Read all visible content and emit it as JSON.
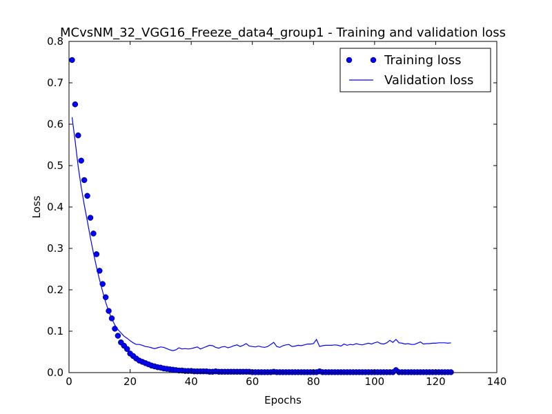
{
  "chart_data": {
    "type": "line",
    "title": "MCvsNM_32_VGG16_Freeze_data4_group1 - Training and validation loss",
    "xlabel": "Epochs",
    "ylabel": "Loss",
    "xlim": [
      0,
      140
    ],
    "ylim": [
      0.0,
      0.8
    ],
    "xticks": [
      "0",
      "20",
      "40",
      "60",
      "80",
      "100",
      "120",
      "140"
    ],
    "yticks": [
      "0.0",
      "0.1",
      "0.2",
      "0.3",
      "0.4",
      "0.5",
      "0.6",
      "0.7",
      "0.8"
    ],
    "grid": false,
    "legend_position": "top-right",
    "series": [
      {
        "name": "Training loss",
        "style": "markers",
        "color": "#0000ff",
        "x": [
          1,
          2,
          3,
          4,
          5,
          6,
          7,
          8,
          9,
          10,
          11,
          12,
          13,
          14,
          15,
          16,
          17,
          18,
          19,
          20,
          21,
          22,
          23,
          24,
          25,
          26,
          27,
          28,
          29,
          30,
          31,
          32,
          33,
          34,
          35,
          36,
          37,
          38,
          39,
          40,
          41,
          42,
          43,
          44,
          45,
          46,
          47,
          48,
          49,
          50,
          51,
          52,
          53,
          54,
          55,
          56,
          57,
          58,
          59,
          60,
          61,
          62,
          63,
          64,
          65,
          66,
          67,
          68,
          69,
          70,
          71,
          72,
          73,
          74,
          75,
          76,
          77,
          78,
          79,
          80,
          81,
          82,
          83,
          84,
          85,
          86,
          87,
          88,
          89,
          90,
          91,
          92,
          93,
          94,
          95,
          96,
          97,
          98,
          99,
          100,
          101,
          102,
          103,
          104,
          105,
          106,
          107,
          108,
          109,
          110,
          111,
          112,
          113,
          114,
          115,
          116,
          117,
          118,
          119,
          120,
          121,
          122,
          123,
          124,
          125
        ],
        "values": [
          0.755,
          0.648,
          0.573,
          0.512,
          0.465,
          0.427,
          0.374,
          0.336,
          0.286,
          0.246,
          0.214,
          0.182,
          0.149,
          0.131,
          0.106,
          0.089,
          0.073,
          0.065,
          0.057,
          0.046,
          0.04,
          0.034,
          0.029,
          0.026,
          0.023,
          0.02,
          0.017,
          0.015,
          0.013,
          0.012,
          0.01,
          0.009,
          0.008,
          0.007,
          0.006,
          0.005,
          0.005,
          0.004,
          0.004,
          0.004,
          0.003,
          0.003,
          0.003,
          0.003,
          0.003,
          0.002,
          0.002,
          0.003,
          0.002,
          0.002,
          0.002,
          0.002,
          0.002,
          0.002,
          0.002,
          0.002,
          0.002,
          0.002,
          0.002,
          0.001,
          0.001,
          0.001,
          0.001,
          0.001,
          0.001,
          0.001,
          0.002,
          0.001,
          0.001,
          0.001,
          0.001,
          0.001,
          0.001,
          0.001,
          0.001,
          0.001,
          0.001,
          0.001,
          0.001,
          0.001,
          0.001,
          0.003,
          0.001,
          0.001,
          0.001,
          0.001,
          0.001,
          0.001,
          0.001,
          0.001,
          0.001,
          0.001,
          0.001,
          0.001,
          0.001,
          0.001,
          0.001,
          0.001,
          0.001,
          0.001,
          0.001,
          0.001,
          0.001,
          0.001,
          0.001,
          0.001,
          0.006,
          0.001,
          0.001,
          0.001,
          0.001,
          0.001,
          0.001,
          0.001,
          0.001,
          0.001,
          0.001,
          0.001,
          0.001,
          0.001,
          0.001,
          0.001,
          0.001,
          0.001,
          0.001
        ]
      },
      {
        "name": "Validation loss",
        "style": "line",
        "color": "#0000ff",
        "x": [
          1,
          2,
          3,
          4,
          5,
          6,
          7,
          8,
          9,
          10,
          11,
          12,
          13,
          14,
          15,
          16,
          17,
          18,
          19,
          20,
          21,
          22,
          23,
          24,
          25,
          26,
          27,
          28,
          29,
          30,
          31,
          32,
          33,
          34,
          35,
          36,
          37,
          38,
          39,
          40,
          41,
          42,
          43,
          44,
          45,
          46,
          47,
          48,
          49,
          50,
          51,
          52,
          53,
          54,
          55,
          56,
          57,
          58,
          59,
          60,
          61,
          62,
          63,
          64,
          65,
          66,
          67,
          68,
          69,
          70,
          71,
          72,
          73,
          74,
          75,
          76,
          77,
          78,
          79,
          80,
          81,
          82,
          83,
          84,
          85,
          86,
          87,
          88,
          89,
          90,
          91,
          92,
          93,
          94,
          95,
          96,
          97,
          98,
          99,
          100,
          101,
          102,
          103,
          104,
          105,
          106,
          107,
          108,
          109,
          110,
          111,
          112,
          113,
          114,
          115,
          116,
          117,
          118,
          119,
          120,
          121,
          122,
          123,
          124,
          125
        ],
        "values": [
          0.617,
          0.56,
          0.498,
          0.448,
          0.405,
          0.366,
          0.326,
          0.289,
          0.255,
          0.224,
          0.196,
          0.17,
          0.148,
          0.13,
          0.115,
          0.104,
          0.096,
          0.088,
          0.083,
          0.077,
          0.072,
          0.068,
          0.068,
          0.066,
          0.063,
          0.062,
          0.06,
          0.058,
          0.06,
          0.062,
          0.061,
          0.058,
          0.055,
          0.053,
          0.055,
          0.06,
          0.057,
          0.058,
          0.057,
          0.058,
          0.06,
          0.062,
          0.057,
          0.06,
          0.063,
          0.066,
          0.065,
          0.061,
          0.059,
          0.062,
          0.063,
          0.06,
          0.062,
          0.065,
          0.067,
          0.063,
          0.066,
          0.07,
          0.064,
          0.063,
          0.062,
          0.064,
          0.062,
          0.061,
          0.063,
          0.068,
          0.073,
          0.063,
          0.061,
          0.065,
          0.067,
          0.068,
          0.063,
          0.064,
          0.066,
          0.065,
          0.067,
          0.069,
          0.069,
          0.07,
          0.08,
          0.063,
          0.065,
          0.066,
          0.066,
          0.066,
          0.067,
          0.066,
          0.064,
          0.069,
          0.066,
          0.068,
          0.067,
          0.07,
          0.068,
          0.067,
          0.069,
          0.071,
          0.069,
          0.072,
          0.074,
          0.07,
          0.069,
          0.072,
          0.078,
          0.073,
          0.08,
          0.072,
          0.071,
          0.069,
          0.07,
          0.068,
          0.068,
          0.071,
          0.074,
          0.069,
          0.07,
          0.07,
          0.071,
          0.071,
          0.072,
          0.072,
          0.072,
          0.071,
          0.072
        ]
      }
    ]
  }
}
